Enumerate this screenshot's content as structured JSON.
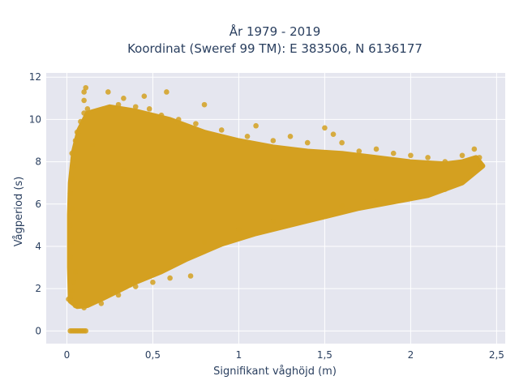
{
  "chart_data": {
    "type": "scatter",
    "title": "År 1979 - 2019",
    "subtitle": "Koordinat (Sweref 99 TM): E 383506, N 6136177",
    "xlabel": "Signifikant våghöjd (m)",
    "ylabel": "Vågperiod (s)",
    "xlim": [
      -0.12,
      2.55
    ],
    "ylim": [
      -0.6,
      12.2
    ],
    "x_ticks": [
      0,
      0.5,
      1,
      1.5,
      2,
      2.5
    ],
    "x_tick_labels": [
      "0",
      "0,5",
      "1",
      "1,5",
      "2",
      "2,5"
    ],
    "y_ticks": [
      0,
      2,
      4,
      6,
      8,
      10,
      12
    ],
    "y_tick_labels": [
      "0",
      "2",
      "4",
      "6",
      "8",
      "10",
      "12"
    ],
    "grid": true,
    "legend": false,
    "marker_color": "#d4a020",
    "plot_bg": "#e5e6ef",
    "points": [
      [
        0.02,
        0
      ],
      [
        0.03,
        0
      ],
      [
        0.04,
        0
      ],
      [
        0.05,
        0
      ],
      [
        0.06,
        0
      ],
      [
        0.07,
        0
      ],
      [
        0.08,
        0
      ],
      [
        0.09,
        0
      ],
      [
        0.1,
        0
      ],
      [
        0.11,
        0
      ],
      [
        0.01,
        1.5
      ],
      [
        0.02,
        1.6
      ],
      [
        0.03,
        1.9
      ],
      [
        0.04,
        2.3
      ],
      [
        0.05,
        2.8
      ],
      [
        0.02,
        3.5
      ],
      [
        0.03,
        4.2
      ],
      [
        0.02,
        5.0
      ],
      [
        0.03,
        5.8
      ],
      [
        0.02,
        6.5
      ],
      [
        0.03,
        7.2
      ],
      [
        0.04,
        7.8
      ],
      [
        0.03,
        8.4
      ],
      [
        0.05,
        9.0
      ],
      [
        0.06,
        9.4
      ],
      [
        0.08,
        9.9
      ],
      [
        0.1,
        10.3
      ],
      [
        0.12,
        10.5
      ],
      [
        0.1,
        10.9
      ],
      [
        0.1,
        11.3
      ],
      [
        0.11,
        11.5
      ],
      [
        0.24,
        11.3
      ],
      [
        0.33,
        11.0
      ],
      [
        0.3,
        10.7
      ],
      [
        0.4,
        10.6
      ],
      [
        0.48,
        10.5
      ],
      [
        0.45,
        11.1
      ],
      [
        0.55,
        10.2
      ],
      [
        0.58,
        11.3
      ],
      [
        0.65,
        10.0
      ],
      [
        0.75,
        9.8
      ],
      [
        0.8,
        10.7
      ],
      [
        0.9,
        9.5
      ],
      [
        1.05,
        9.2
      ],
      [
        1.1,
        9.7
      ],
      [
        1.2,
        9.0
      ],
      [
        1.3,
        9.2
      ],
      [
        1.4,
        8.9
      ],
      [
        1.5,
        9.6
      ],
      [
        1.55,
        9.3
      ],
      [
        1.6,
        8.9
      ],
      [
        1.7,
        8.5
      ],
      [
        1.8,
        8.6
      ],
      [
        1.9,
        8.4
      ],
      [
        2.0,
        8.3
      ],
      [
        2.1,
        8.2
      ],
      [
        2.2,
        8.0
      ],
      [
        2.3,
        8.3
      ],
      [
        2.37,
        8.6
      ],
      [
        2.4,
        8.2
      ],
      [
        0.8,
        4.2
      ],
      [
        0.72,
        2.6
      ],
      [
        0.6,
        2.5
      ],
      [
        0.5,
        2.3
      ],
      [
        0.4,
        2.1
      ],
      [
        0.3,
        1.7
      ],
      [
        0.2,
        1.3
      ],
      [
        0.1,
        1.1
      ],
      [
        0.05,
        1.2
      ],
      [
        1.0,
        4.8
      ],
      [
        1.2,
        5.2
      ],
      [
        1.4,
        5.6
      ],
      [
        1.6,
        5.9
      ],
      [
        1.8,
        6.1
      ],
      [
        2.0,
        6.3
      ],
      [
        2.2,
        6.7
      ],
      [
        2.35,
        7.4
      ],
      [
        2.4,
        7.9
      ],
      [
        0.33,
        7.6
      ],
      [
        0.15,
        8.8
      ]
    ],
    "envelope": {
      "upper": [
        [
          0.02,
          1.4
        ],
        [
          0.015,
          3.0
        ],
        [
          0.015,
          5.5
        ],
        [
          0.02,
          7.0
        ],
        [
          0.04,
          8.5
        ],
        [
          0.07,
          9.5
        ],
        [
          0.12,
          10.3
        ],
        [
          0.25,
          10.6
        ],
        [
          0.4,
          10.4
        ],
        [
          0.6,
          10.0
        ],
        [
          0.8,
          9.4
        ],
        [
          1.0,
          9.0
        ],
        [
          1.2,
          8.7
        ],
        [
          1.4,
          8.5
        ],
        [
          1.6,
          8.4
        ],
        [
          1.8,
          8.2
        ],
        [
          2.0,
          8.0
        ],
        [
          2.2,
          7.9
        ],
        [
          2.3,
          8.0
        ],
        [
          2.38,
          8.2
        ],
        [
          2.42,
          7.8
        ]
      ],
      "lower": [
        [
          2.42,
          7.8
        ],
        [
          2.3,
          7.0
        ],
        [
          2.1,
          6.4
        ],
        [
          1.9,
          6.1
        ],
        [
          1.7,
          5.8
        ],
        [
          1.5,
          5.4
        ],
        [
          1.3,
          5.0
        ],
        [
          1.1,
          4.6
        ],
        [
          0.9,
          4.1
        ],
        [
          0.7,
          3.4
        ],
        [
          0.55,
          2.8
        ],
        [
          0.4,
          2.3
        ],
        [
          0.3,
          1.9
        ],
        [
          0.2,
          1.5
        ],
        [
          0.12,
          1.2
        ],
        [
          0.06,
          1.15
        ],
        [
          0.02,
          1.4
        ]
      ]
    }
  }
}
